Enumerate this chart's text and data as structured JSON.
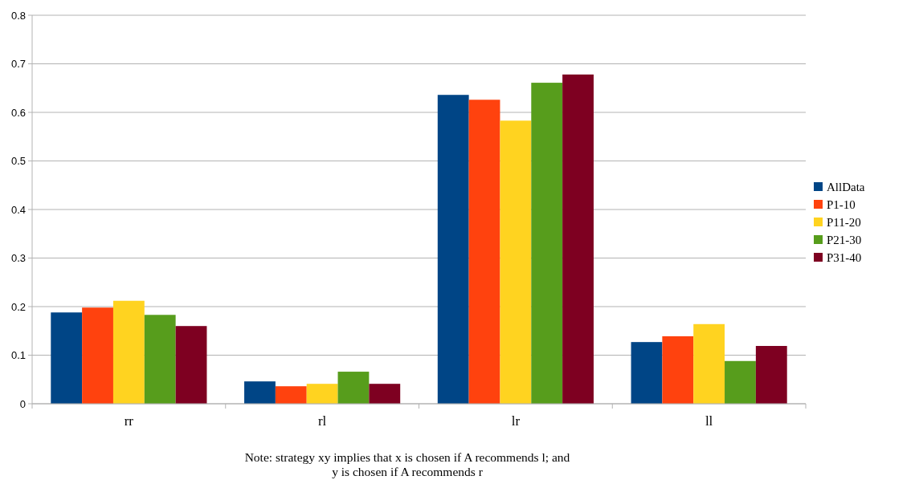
{
  "chart_data": {
    "type": "bar",
    "categories": [
      "rr",
      "rl",
      "lr",
      "ll"
    ],
    "series": [
      {
        "name": "AllData",
        "color": "#004586",
        "values": [
          0.188,
          0.046,
          0.636,
          0.127
        ]
      },
      {
        "name": "P1-10",
        "color": "#ff420e",
        "values": [
          0.198,
          0.036,
          0.626,
          0.139
        ]
      },
      {
        "name": "P11-20",
        "color": "#ffd320",
        "values": [
          0.212,
          0.041,
          0.583,
          0.164
        ]
      },
      {
        "name": "P21-30",
        "color": "#579d1c",
        "values": [
          0.183,
          0.066,
          0.661,
          0.088
        ]
      },
      {
        "name": "P31-40",
        "color": "#7e0021",
        "values": [
          0.16,
          0.041,
          0.678,
          0.119
        ]
      }
    ],
    "ylim": [
      0,
      0.8
    ],
    "yticks": [
      0,
      0.1,
      0.2,
      0.3,
      0.4,
      0.5,
      0.6,
      0.7,
      0.8
    ],
    "grid": "y",
    "legend": "right",
    "annotations": [
      "Note: strategy xy implies that x is chosen if A recommends l; and y is chosen if A recommends r"
    ]
  }
}
